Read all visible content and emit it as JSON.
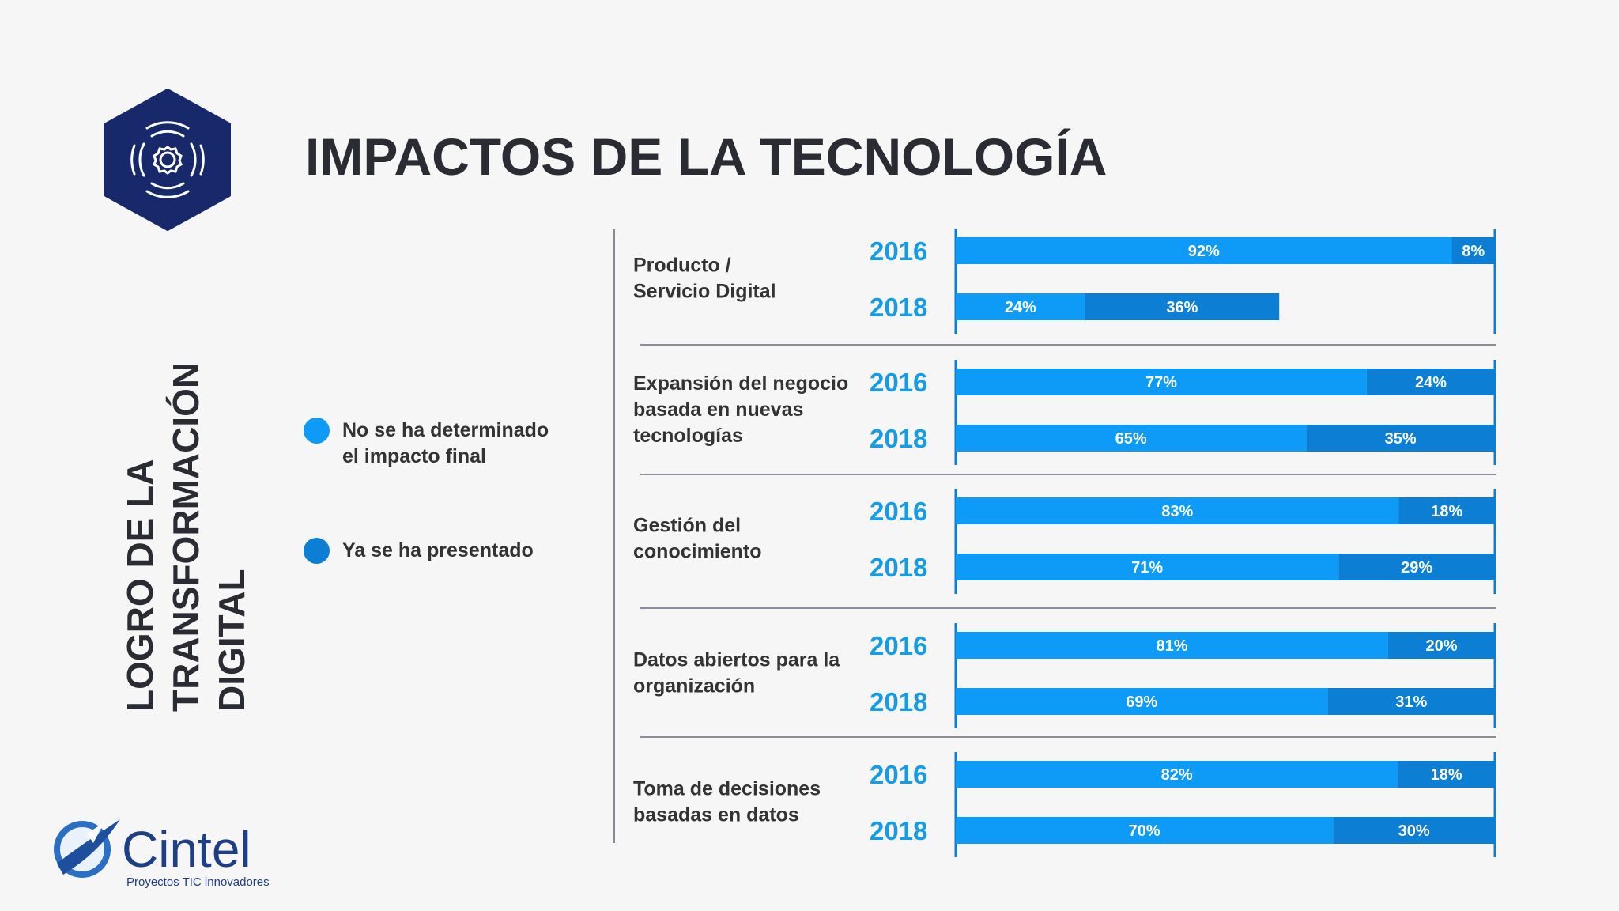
{
  "title": "IMPACTOS DE LA TECNOLOGÍA",
  "side_heading": [
    "LOGRO DE LA",
    "TRANSFORMACIÓN",
    "DIGITAL"
  ],
  "legend": [
    {
      "label_lines": [
        "No se ha determinado",
        "el impacto final"
      ],
      "color": "#0d9bf7"
    },
    {
      "label_lines": [
        "Ya se ha presentado"
      ],
      "color": "#0c7ed4"
    }
  ],
  "logo": {
    "name": "Cintel",
    "tagline": "Proyectos TIC innovadores"
  },
  "icon": "gear-icon",
  "colors": {
    "primary": "#0d9bf7",
    "secondary": "#0c7ed4",
    "year": "#169ce6",
    "navy": "#17296b"
  },
  "chart_data": {
    "type": "bar",
    "orientation": "horizontal",
    "stacked": true,
    "series": [
      {
        "name": "No se ha determinado el impacto final",
        "color": "#0d9bf7"
      },
      {
        "name": "Ya se ha presentado",
        "color": "#0c7ed4"
      }
    ],
    "groups": [
      {
        "label_lines": [
          "Producto /",
          "Servicio Digital"
        ],
        "rows": [
          {
            "year": "2016",
            "values": [
              92,
              8
            ],
            "labels": [
              "92%",
              "8%"
            ]
          },
          {
            "year": "2018",
            "values": [
              24,
              36
            ],
            "labels": [
              "24%",
              "36%"
            ]
          }
        ]
      },
      {
        "label_lines": [
          "Expansión del negocio",
          "basada en nuevas",
          "tecnologías"
        ],
        "rows": [
          {
            "year": "2016",
            "values": [
              77,
              24
            ],
            "labels": [
              "77%",
              "24%"
            ]
          },
          {
            "year": "2018",
            "values": [
              65,
              35
            ],
            "labels": [
              "65%",
              "35%"
            ]
          }
        ]
      },
      {
        "label_lines": [
          "Gestión del",
          "conocimiento"
        ],
        "rows": [
          {
            "year": "2016",
            "values": [
              83,
              18
            ],
            "labels": [
              "83%",
              "18%"
            ]
          },
          {
            "year": "2018",
            "values": [
              71,
              29
            ],
            "labels": [
              "71%",
              "29%"
            ]
          }
        ]
      },
      {
        "label_lines": [
          "Datos abiertos para la",
          "organización"
        ],
        "rows": [
          {
            "year": "2016",
            "values": [
              81,
              20
            ],
            "labels": [
              "81%",
              "20%"
            ]
          },
          {
            "year": "2018",
            "values": [
              69,
              31
            ],
            "labels": [
              "69%",
              "31%"
            ]
          }
        ]
      },
      {
        "label_lines": [
          "Toma de decisiones",
          "basadas en datos"
        ],
        "rows": [
          {
            "year": "2016",
            "values": [
              82,
              18
            ],
            "labels": [
              "82%",
              "18%"
            ]
          },
          {
            "year": "2018",
            "values": [
              70,
              30
            ],
            "labels": [
              "70%",
              "30%"
            ]
          }
        ]
      }
    ]
  }
}
